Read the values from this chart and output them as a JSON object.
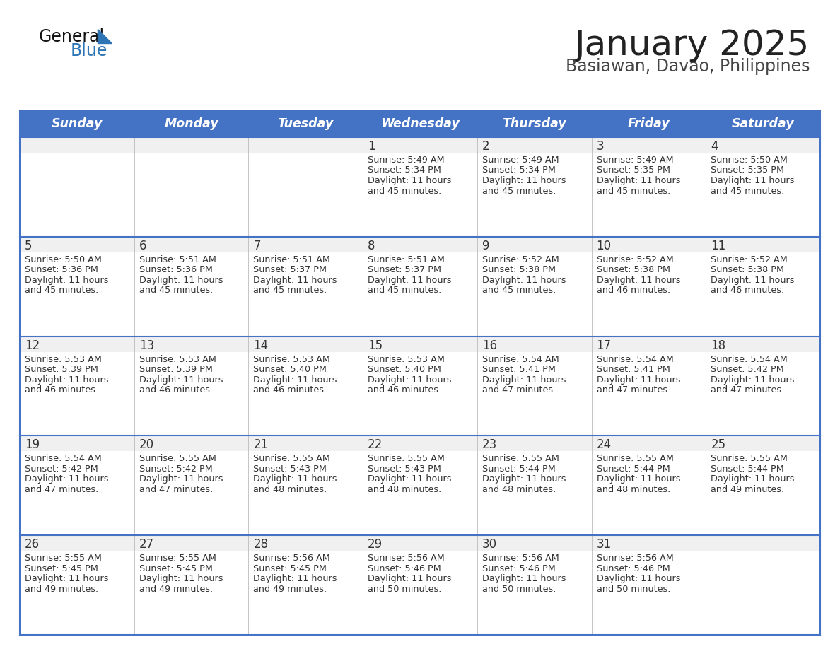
{
  "title": "January 2025",
  "subtitle": "Basiawan, Davao, Philippines",
  "days_of_week": [
    "Sunday",
    "Monday",
    "Tuesday",
    "Wednesday",
    "Thursday",
    "Friday",
    "Saturday"
  ],
  "header_bg": "#4472C4",
  "header_text": "#FFFFFF",
  "row_bg": "#FFFFFF",
  "row_top_band_bg": "#F0F0F0",
  "first_row_bg": "#F0F0F0",
  "cell_text": "#333333",
  "border_color": "#4472C4",
  "divider_color": "#AAAAAA",
  "title_color": "#222222",
  "subtitle_color": "#444444",
  "logo_general_color": "#111111",
  "logo_blue_color": "#2E75B6",
  "calendar": [
    [
      null,
      null,
      null,
      {
        "day": 1,
        "sunrise": "5:49 AM",
        "sunset": "5:34 PM",
        "daylight": "11 hours and 45 minutes."
      },
      {
        "day": 2,
        "sunrise": "5:49 AM",
        "sunset": "5:34 PM",
        "daylight": "11 hours and 45 minutes."
      },
      {
        "day": 3,
        "sunrise": "5:49 AM",
        "sunset": "5:35 PM",
        "daylight": "11 hours and 45 minutes."
      },
      {
        "day": 4,
        "sunrise": "5:50 AM",
        "sunset": "5:35 PM",
        "daylight": "11 hours and 45 minutes."
      }
    ],
    [
      {
        "day": 5,
        "sunrise": "5:50 AM",
        "sunset": "5:36 PM",
        "daylight": "11 hours and 45 minutes."
      },
      {
        "day": 6,
        "sunrise": "5:51 AM",
        "sunset": "5:36 PM",
        "daylight": "11 hours and 45 minutes."
      },
      {
        "day": 7,
        "sunrise": "5:51 AM",
        "sunset": "5:37 PM",
        "daylight": "11 hours and 45 minutes."
      },
      {
        "day": 8,
        "sunrise": "5:51 AM",
        "sunset": "5:37 PM",
        "daylight": "11 hours and 45 minutes."
      },
      {
        "day": 9,
        "sunrise": "5:52 AM",
        "sunset": "5:38 PM",
        "daylight": "11 hours and 45 minutes."
      },
      {
        "day": 10,
        "sunrise": "5:52 AM",
        "sunset": "5:38 PM",
        "daylight": "11 hours and 46 minutes."
      },
      {
        "day": 11,
        "sunrise": "5:52 AM",
        "sunset": "5:38 PM",
        "daylight": "11 hours and 46 minutes."
      }
    ],
    [
      {
        "day": 12,
        "sunrise": "5:53 AM",
        "sunset": "5:39 PM",
        "daylight": "11 hours and 46 minutes."
      },
      {
        "day": 13,
        "sunrise": "5:53 AM",
        "sunset": "5:39 PM",
        "daylight": "11 hours and 46 minutes."
      },
      {
        "day": 14,
        "sunrise": "5:53 AM",
        "sunset": "5:40 PM",
        "daylight": "11 hours and 46 minutes."
      },
      {
        "day": 15,
        "sunrise": "5:53 AM",
        "sunset": "5:40 PM",
        "daylight": "11 hours and 46 minutes."
      },
      {
        "day": 16,
        "sunrise": "5:54 AM",
        "sunset": "5:41 PM",
        "daylight": "11 hours and 47 minutes."
      },
      {
        "day": 17,
        "sunrise": "5:54 AM",
        "sunset": "5:41 PM",
        "daylight": "11 hours and 47 minutes."
      },
      {
        "day": 18,
        "sunrise": "5:54 AM",
        "sunset": "5:42 PM",
        "daylight": "11 hours and 47 minutes."
      }
    ],
    [
      {
        "day": 19,
        "sunrise": "5:54 AM",
        "sunset": "5:42 PM",
        "daylight": "11 hours and 47 minutes."
      },
      {
        "day": 20,
        "sunrise": "5:55 AM",
        "sunset": "5:42 PM",
        "daylight": "11 hours and 47 minutes."
      },
      {
        "day": 21,
        "sunrise": "5:55 AM",
        "sunset": "5:43 PM",
        "daylight": "11 hours and 48 minutes."
      },
      {
        "day": 22,
        "sunrise": "5:55 AM",
        "sunset": "5:43 PM",
        "daylight": "11 hours and 48 minutes."
      },
      {
        "day": 23,
        "sunrise": "5:55 AM",
        "sunset": "5:44 PM",
        "daylight": "11 hours and 48 minutes."
      },
      {
        "day": 24,
        "sunrise": "5:55 AM",
        "sunset": "5:44 PM",
        "daylight": "11 hours and 48 minutes."
      },
      {
        "day": 25,
        "sunrise": "5:55 AM",
        "sunset": "5:44 PM",
        "daylight": "11 hours and 49 minutes."
      }
    ],
    [
      {
        "day": 26,
        "sunrise": "5:55 AM",
        "sunset": "5:45 PM",
        "daylight": "11 hours and 49 minutes."
      },
      {
        "day": 27,
        "sunrise": "5:55 AM",
        "sunset": "5:45 PM",
        "daylight": "11 hours and 49 minutes."
      },
      {
        "day": 28,
        "sunrise": "5:56 AM",
        "sunset": "5:45 PM",
        "daylight": "11 hours and 49 minutes."
      },
      {
        "day": 29,
        "sunrise": "5:56 AM",
        "sunset": "5:46 PM",
        "daylight": "11 hours and 50 minutes."
      },
      {
        "day": 30,
        "sunrise": "5:56 AM",
        "sunset": "5:46 PM",
        "daylight": "11 hours and 50 minutes."
      },
      {
        "day": 31,
        "sunrise": "5:56 AM",
        "sunset": "5:46 PM",
        "daylight": "11 hours and 50 minutes."
      },
      null
    ]
  ]
}
